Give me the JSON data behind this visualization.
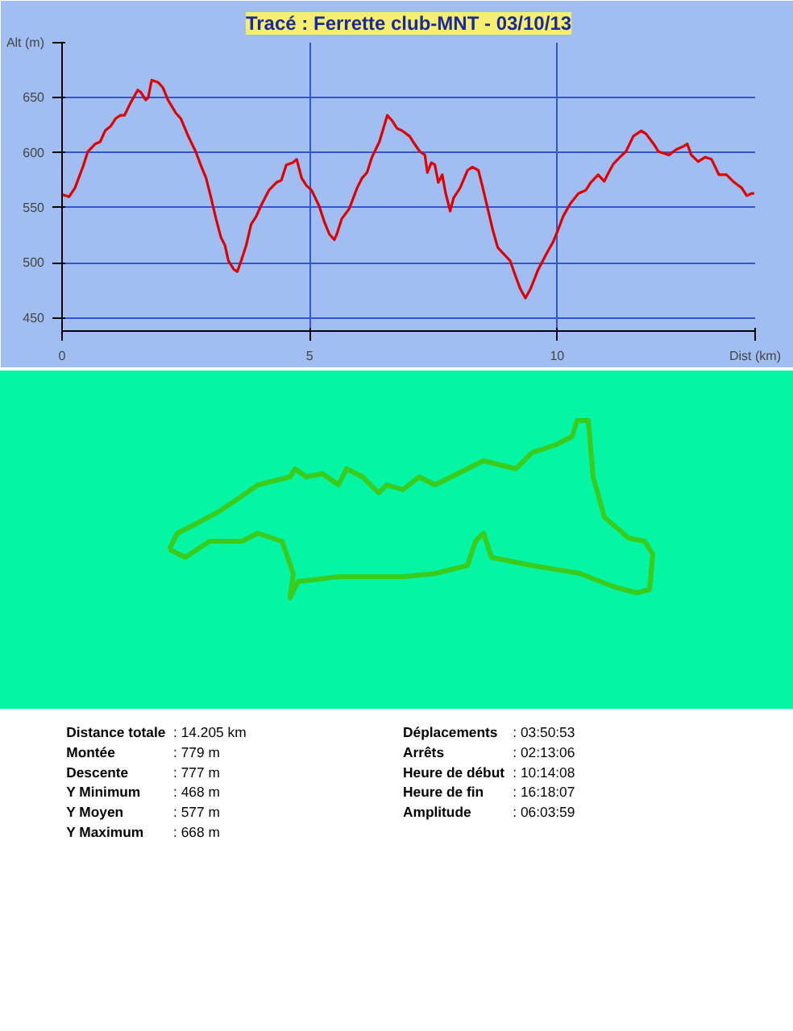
{
  "chart_data": {
    "type": "line",
    "title": "Tracé : Ferrette club-MNT - 03/10/13",
    "ylabel": "Alt (m)",
    "xlabel": "Dist (km)",
    "x": [
      0,
      0.14,
      0.26,
      0.42,
      0.52,
      0.67,
      0.77,
      0.87,
      0.98,
      1.08,
      1.18,
      1.26,
      1.38,
      1.53,
      1.59,
      1.69,
      1.74,
      1.81,
      1.94,
      2.04,
      2.14,
      2.3,
      2.4,
      2.55,
      2.7,
      2.8,
      2.91,
      3.01,
      3.11,
      3.21,
      3.29,
      3.36,
      3.47,
      3.54,
      3.62,
      3.72,
      3.82,
      3.92,
      4.02,
      4.18,
      4.33,
      4.43,
      4.53,
      4.66,
      4.74,
      4.84,
      4.94,
      5.04,
      5.19,
      5.3,
      5.4,
      5.5,
      5.55,
      5.65,
      5.8,
      5.96,
      6.06,
      6.16,
      6.26,
      6.41,
      6.57,
      6.67,
      6.77,
      6.87,
      7.02,
      7.12,
      7.23,
      7.33,
      7.38,
      7.46,
      7.53,
      7.6,
      7.68,
      7.75,
      7.84,
      7.91,
      8.04,
      8.19,
      8.29,
      8.41,
      8.5,
      8.6,
      8.7,
      8.8,
      8.9,
      9.05,
      9.16,
      9.26,
      9.36,
      9.46,
      9.61,
      9.77,
      9.92,
      10.02,
      10.12,
      10.27,
      10.43,
      10.58,
      10.68,
      10.83,
      10.95,
      11.04,
      11.14,
      11.29,
      11.39,
      11.54,
      11.7,
      11.8,
      11.95,
      12.05,
      12.26,
      12.41,
      12.56,
      12.63,
      12.71,
      12.85,
      12.99,
      13.12,
      13.27,
      13.42,
      13.58,
      13.73,
      13.83,
      13.93,
      13.98
    ],
    "series": [
      {
        "color": "#e00000",
        "values": [
          562,
          560,
          568,
          587,
          601,
          608,
          610,
          620,
          624,
          631,
          634,
          634,
          645,
          657,
          655,
          648,
          650,
          666,
          664,
          659,
          648,
          636,
          631,
          615,
          601,
          589,
          577,
          559,
          540,
          523,
          516,
          502,
          494,
          492,
          502,
          516,
          535,
          542,
          552,
          566,
          573,
          575,
          589,
          591,
          594,
          577,
          570,
          566,
          552,
          537,
          526,
          521,
          526,
          540,
          549,
          568,
          577,
          582,
          596,
          610,
          634,
          629,
          622,
          620,
          615,
          608,
          601,
          598,
          582,
          591,
          589,
          573,
          580,
          563,
          547,
          559,
          568,
          584,
          587,
          584,
          568,
          549,
          530,
          514,
          509,
          502,
          488,
          476,
          468,
          476,
          493,
          507,
          519,
          530,
          542,
          554,
          563,
          566,
          573,
          580,
          574,
          582,
          590,
          597,
          601,
          615,
          620,
          617,
          608,
          601,
          598,
          603,
          606,
          608,
          598,
          592,
          596,
          594,
          580,
          580,
          573,
          568,
          561,
          563,
          563
        ]
      }
    ],
    "xlim": [
      0,
      14.0
    ],
    "ylim": [
      438,
      700
    ],
    "xticks": [
      0,
      5,
      10
    ],
    "yticks": [
      450,
      500,
      550,
      600,
      650
    ],
    "grid": true,
    "marker": "none",
    "annotations": [
      "Distance totale : 14.205 km",
      "Montée : 779 m",
      "Descente : 777 m",
      "Y Minimum : 468 m",
      "Y Moyen : 577 m",
      "Y Maximum : 668 m",
      "Déplacements : 03:50:53",
      "Arrêts : 02:13:06",
      "Heure de début : 10:14:08",
      "Heure de fin : 16:18:07",
      "Amplitude : 06:03:59"
    ]
  }
}
